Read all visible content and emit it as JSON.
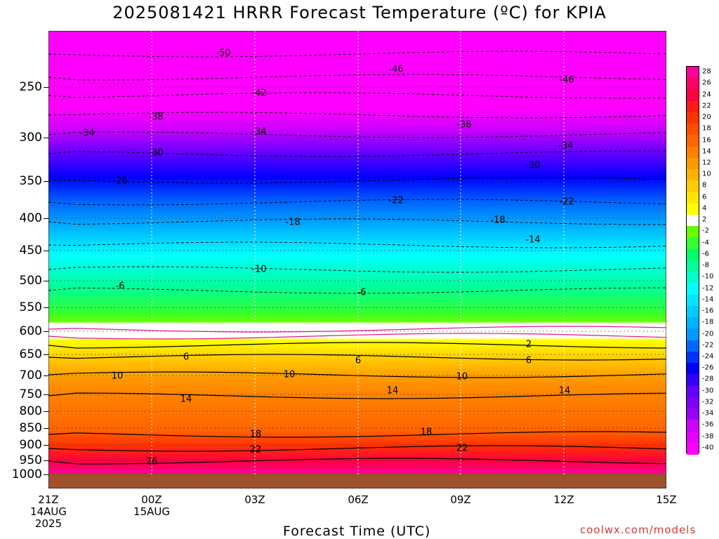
{
  "header": {
    "title": "2025081421 HRRR Forecast Temperature (ºC) for KPIA"
  },
  "y_axis": {
    "labels": [
      "250",
      "300",
      "350",
      "400",
      "450",
      "500",
      "550",
      "600",
      "650",
      "700",
      "750",
      "800",
      "850",
      "900",
      "950",
      "1000"
    ],
    "values": [
      250,
      300,
      350,
      400,
      450,
      500,
      550,
      600,
      650,
      700,
      750,
      800,
      850,
      900,
      950,
      1000
    ]
  },
  "x_axis": {
    "title": "Forecast Time (UTC)",
    "ticks": [
      {
        "label": "21Z\n14AUG\n2025"
      },
      {
        "label": "00Z\n15AUG"
      },
      {
        "label": "03Z"
      },
      {
        "label": "06Z"
      },
      {
        "label": "09Z"
      },
      {
        "label": "12Z"
      },
      {
        "label": "15Z"
      }
    ]
  },
  "credit": "coolwx.com/models",
  "colorbar": {
    "labels": [
      "28",
      "26",
      "24",
      "22",
      "20",
      "18",
      "16",
      "14",
      "12",
      "10",
      "8",
      "6",
      "4",
      "2",
      "-2",
      "-4",
      "-6",
      "-8",
      "-10",
      "-12",
      "-14",
      "-16",
      "-18",
      "-20",
      "-22",
      "-24",
      "-26",
      "-28",
      "-30",
      "-32",
      "-34",
      "-36",
      "-38",
      "-40"
    ],
    "colors": [
      "#ff0099",
      "#ff0066",
      "#ff0040",
      "#ff1a1a",
      "#ff3300",
      "#ff4d00",
      "#ff6600",
      "#ff8000",
      "#ff9900",
      "#ffb300",
      "#ffcc00",
      "#ffe600",
      "#ffff00",
      "#ffffff",
      "#66ff00",
      "#33ff33",
      "#00ff66",
      "#00ff99",
      "#00ffcc",
      "#00ffff",
      "#00e6ff",
      "#00ccff",
      "#00b3ff",
      "#0099ff",
      "#0066ff",
      "#0033ff",
      "#0000ff",
      "#3300ff",
      "#6600ff",
      "#8000ff",
      "#9900ff",
      "#cc00ff",
      "#e600ff",
      "#ff00ff"
    ]
  },
  "contour_labels": [
    {
      "text": "-50"
    },
    {
      "text": "-46"
    },
    {
      "text": "-46"
    },
    {
      "text": "-42"
    },
    {
      "text": "-38"
    },
    {
      "text": "-38"
    },
    {
      "text": "-34"
    },
    {
      "text": "-34"
    },
    {
      "text": "-34"
    },
    {
      "text": "-30"
    },
    {
      "text": "-30"
    },
    {
      "text": "-26"
    },
    {
      "text": "-22"
    },
    {
      "text": "-22"
    },
    {
      "text": "-18"
    },
    {
      "text": "-18"
    },
    {
      "text": "-14"
    },
    {
      "text": "-10"
    },
    {
      "text": "-6"
    },
    {
      "text": "-6"
    },
    {
      "text": "2"
    },
    {
      "text": "6"
    },
    {
      "text": "6"
    },
    {
      "text": "6"
    },
    {
      "text": "10"
    },
    {
      "text": "10"
    },
    {
      "text": "10"
    },
    {
      "text": "14"
    },
    {
      "text": "14"
    },
    {
      "text": "14"
    },
    {
      "text": "18"
    },
    {
      "text": "18"
    },
    {
      "text": "22"
    },
    {
      "text": "22"
    },
    {
      "text": "26"
    }
  ]
}
